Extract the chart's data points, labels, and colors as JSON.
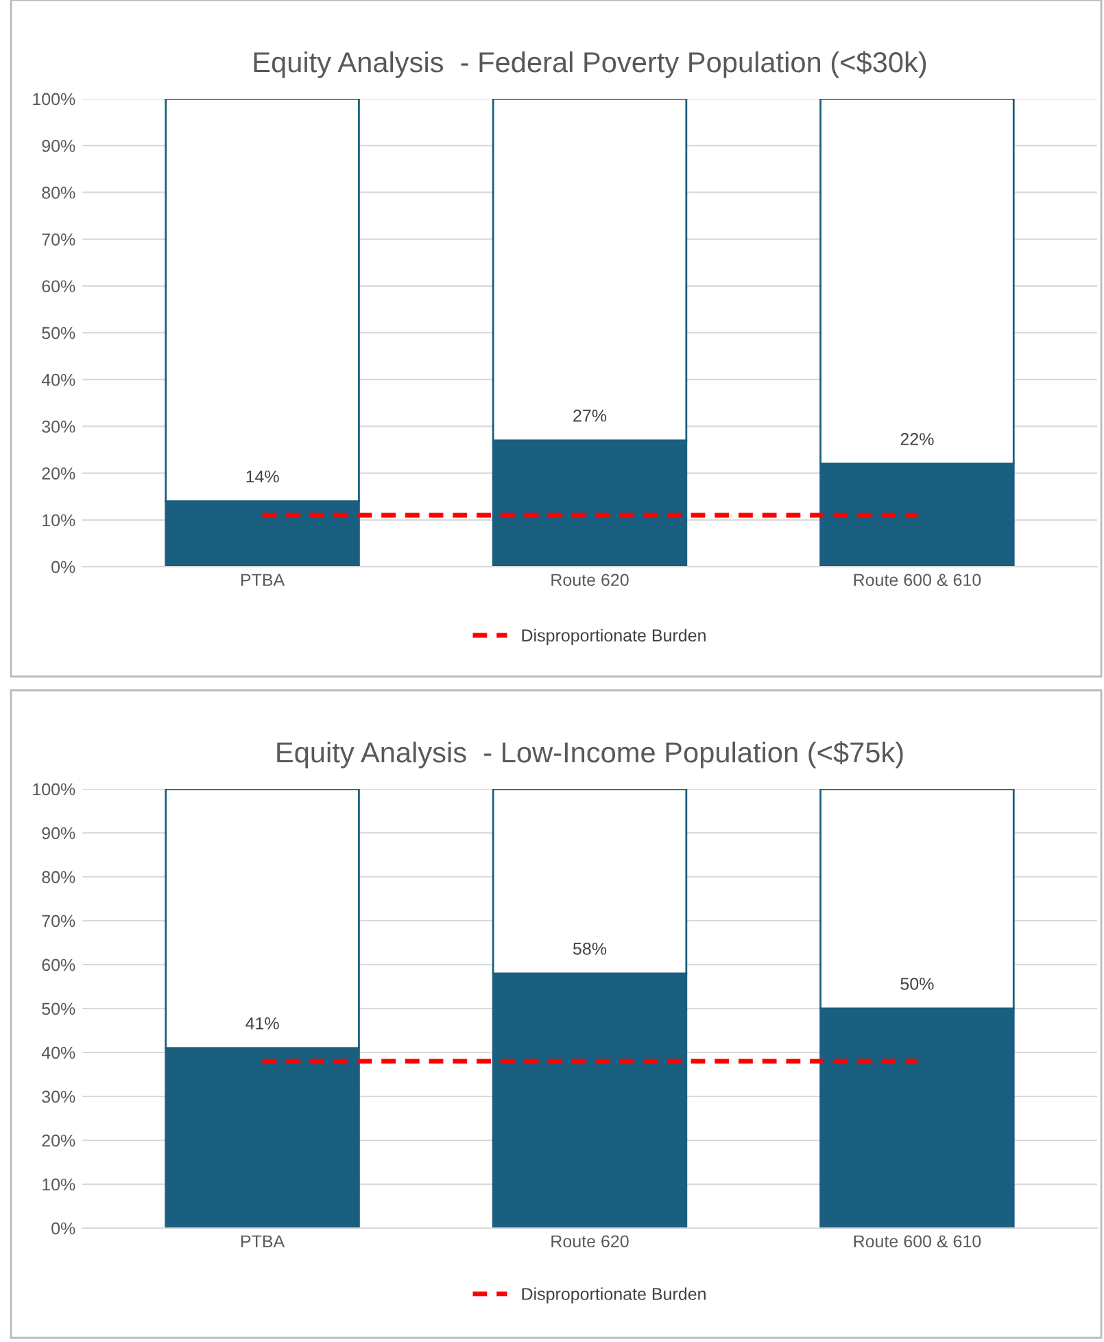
{
  "chart_data": [
    {
      "type": "bar",
      "title": "Equity Analysis  - Federal Poverty Population (<$30k)",
      "categories": [
        "PTBA",
        "Route 620",
        "Route 600 & 610"
      ],
      "stacked": true,
      "series": [
        {
          "color": "#1a5f80",
          "values": [
            14,
            27,
            22
          ],
          "value_labels": [
            "14%",
            "27%",
            "22%"
          ]
        },
        {
          "color": "#ffffff",
          "values": [
            86,
            73,
            78
          ]
        },
        {
          "name": "Disproportionate Burden",
          "type": "line",
          "color": "#ff0000",
          "line_style": "dashed",
          "marker": "none",
          "values": [
            11,
            11,
            11
          ]
        }
      ],
      "ylim": [
        0,
        100
      ],
      "yticks": [
        {
          "value": 0,
          "label": "0%"
        },
        {
          "value": 10,
          "label": "10%"
        },
        {
          "value": 20,
          "label": "20%"
        },
        {
          "value": 30,
          "label": "30%"
        },
        {
          "value": 40,
          "label": "40%"
        },
        {
          "value": 50,
          "label": "50%"
        },
        {
          "value": 60,
          "label": "60%"
        },
        {
          "value": 70,
          "label": "70%"
        },
        {
          "value": 80,
          "label": "80%"
        },
        {
          "value": 90,
          "label": "90%"
        },
        {
          "value": 100,
          "label": "100%"
        }
      ],
      "grid": "y",
      "legend": "bottom"
    },
    {
      "type": "bar",
      "title": "Equity Analysis  - Low-Income Population (<$75k)",
      "categories": [
        "PTBA",
        "Route 620",
        "Route 600 & 610"
      ],
      "stacked": true,
      "series": [
        {
          "color": "#1a5f80",
          "values": [
            41,
            58,
            50
          ],
          "value_labels": [
            "41%",
            "58%",
            "50%"
          ]
        },
        {
          "color": "#ffffff",
          "values": [
            59,
            42,
            50
          ]
        },
        {
          "name": "Disproportionate Burden",
          "type": "line",
          "color": "#ff0000",
          "line_style": "dashed",
          "marker": "none",
          "values": [
            38,
            38,
            38
          ]
        }
      ],
      "ylim": [
        0,
        100
      ],
      "yticks": [
        {
          "value": 0,
          "label": "0%"
        },
        {
          "value": 10,
          "label": "10%"
        },
        {
          "value": 20,
          "label": "20%"
        },
        {
          "value": 30,
          "label": "30%"
        },
        {
          "value": 40,
          "label": "40%"
        },
        {
          "value": 50,
          "label": "50%"
        },
        {
          "value": 60,
          "label": "60%"
        },
        {
          "value": 70,
          "label": "70%"
        },
        {
          "value": 80,
          "label": "80%"
        },
        {
          "value": 90,
          "label": "90%"
        },
        {
          "value": 100,
          "label": "100%"
        }
      ],
      "grid": "y",
      "legend": "bottom"
    }
  ]
}
